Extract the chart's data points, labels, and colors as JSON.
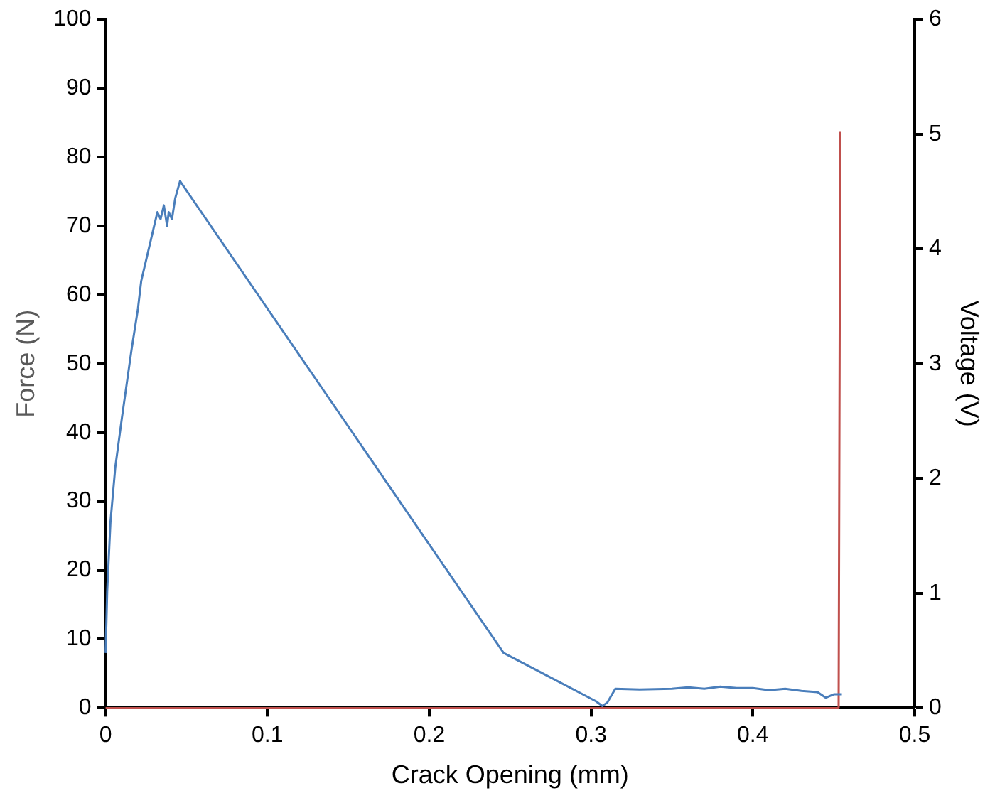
{
  "chart_data": {
    "type": "line",
    "xlabel": "Crack Opening (mm)",
    "ylabel": "Force (N)",
    "y2label": "Voltage (V)",
    "xlim": [
      0,
      0.5
    ],
    "xticks": [
      0,
      0.1,
      0.2,
      0.3,
      0.4,
      0.5
    ],
    "ylim": [
      0,
      100
    ],
    "yticks": [
      0,
      10,
      20,
      30,
      40,
      50,
      60,
      70,
      80,
      90,
      100
    ],
    "y2lim": [
      0,
      6
    ],
    "y2ticks": [
      0,
      1,
      2,
      3,
      4,
      5,
      6
    ],
    "grid": false,
    "legend": false,
    "marker": "none",
    "line_style": "solid",
    "series": [
      {
        "color": "#4a7ebb",
        "x": [
          0,
          0.001,
          0.003,
          0.006,
          0.01,
          0.013,
          0.016,
          0.02,
          0.022,
          0.025,
          0.028,
          0.03,
          0.032,
          0.034,
          0.036,
          0.038,
          0.039,
          0.041,
          0.043,
          0.046,
          0.246,
          0.303,
          0.307,
          0.31,
          0.315,
          0.33,
          0.35,
          0.36,
          0.37,
          0.38,
          0.39,
          0.4,
          0.41,
          0.42,
          0.43,
          0.44,
          0.445,
          0.45,
          0.455
        ],
        "values": [
          8,
          17,
          27,
          35,
          42,
          47,
          52,
          58,
          62,
          65,
          68,
          70,
          72,
          71,
          73,
          70,
          72,
          71,
          74,
          76.5,
          8,
          1,
          0.3,
          0.8,
          2.8,
          2.7,
          2.8,
          3,
          2.8,
          3.1,
          2.9,
          2.9,
          2.6,
          2.8,
          2.5,
          2.3,
          1.5,
          2,
          2
        ]
      },
      {
        "color": "#c0504d",
        "axis": "y2",
        "x": [
          0,
          0.453,
          0.454
        ],
        "values": [
          0,
          0,
          5.02
        ]
      }
    ]
  }
}
